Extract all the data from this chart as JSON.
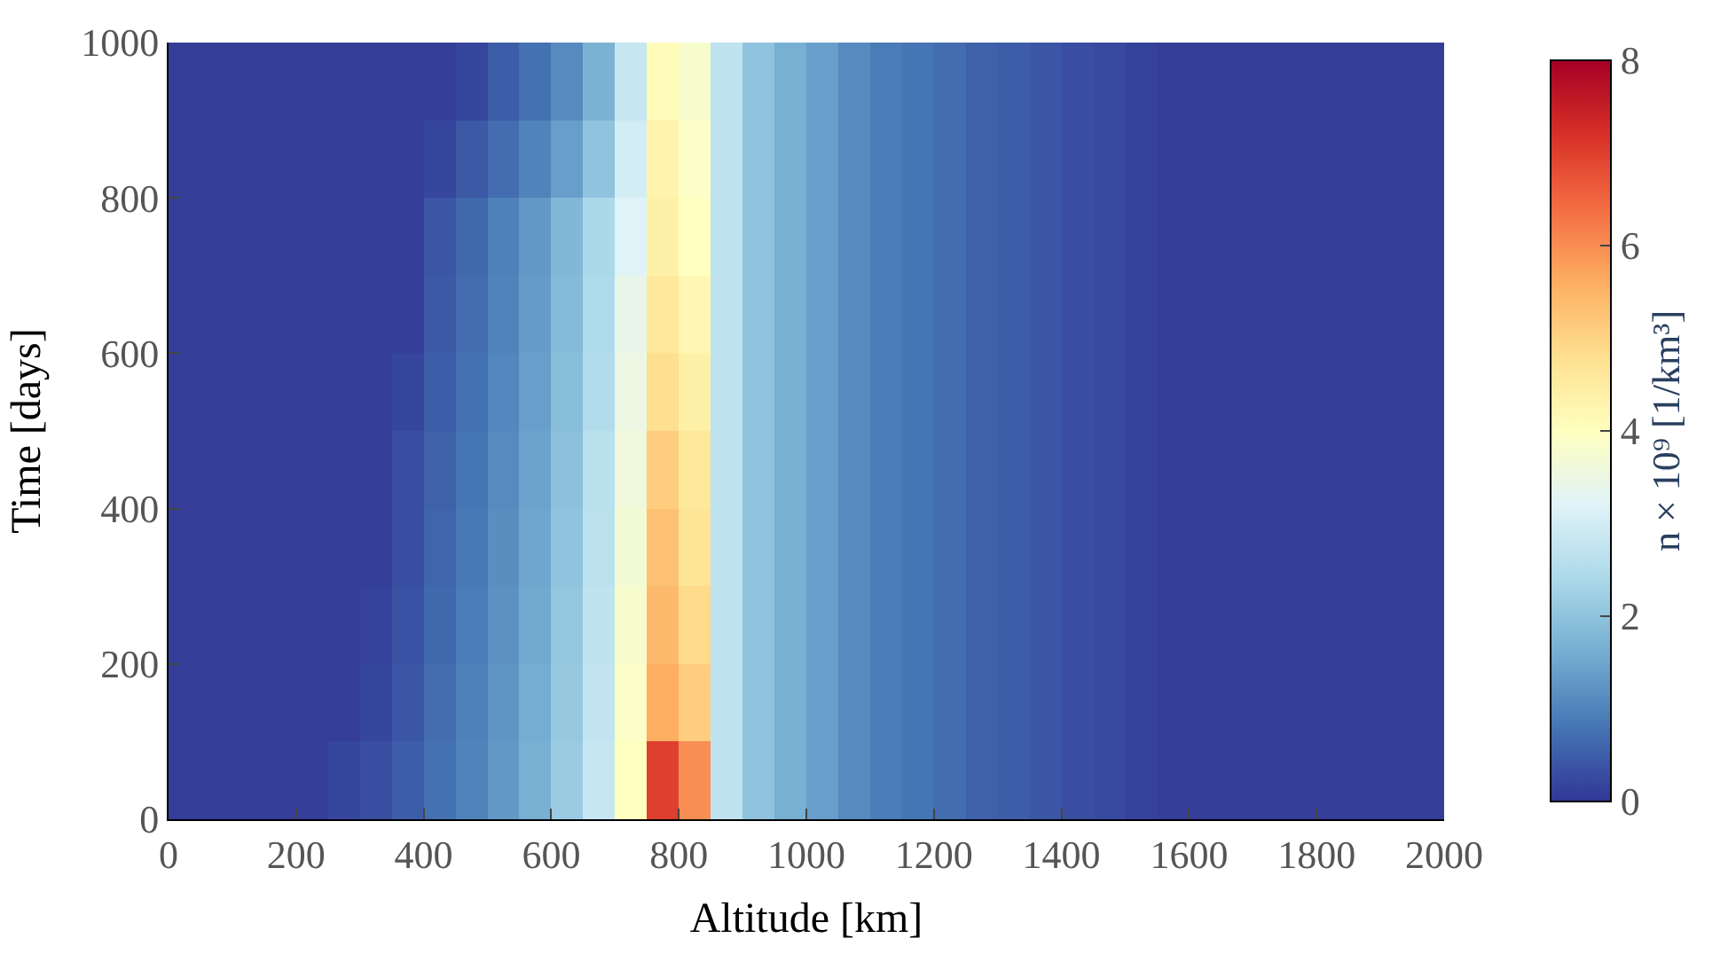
{
  "chart_data": {
    "type": "heatmap",
    "xlabel": "Altitude [km]",
    "ylabel": "Time [days]",
    "clabel": "n × 10⁹ [1/km³]",
    "x": [
      25,
      75,
      125,
      175,
      225,
      275,
      325,
      375,
      425,
      475,
      525,
      575,
      625,
      675,
      725,
      775,
      825,
      875,
      925,
      975,
      1025,
      1075,
      1125,
      1175,
      1225,
      1275,
      1325,
      1375,
      1425,
      1475,
      1525,
      1575,
      1625,
      1675,
      1725,
      1775,
      1825,
      1875,
      1925,
      1975
    ],
    "y": [
      950,
      850,
      750,
      650,
      550,
      450,
      350,
      250,
      150,
      50
    ],
    "cells": [
      [
        0.1,
        0.1,
        0.1,
        0.1,
        0.1,
        0.1,
        0.1,
        0.1,
        0.1,
        0.2,
        0.5,
        0.75,
        1.1,
        1.7,
        2.8,
        4.1,
        3.8,
        2.7,
        2.0,
        1.65,
        1.4,
        1.1,
        0.9,
        0.8,
        0.7,
        0.55,
        0.5,
        0.4,
        0.3,
        0.25,
        0.15,
        0.1,
        0.1,
        0.1,
        0.1,
        0.1,
        0.1,
        0.1,
        0.1,
        0.1
      ],
      [
        0.1,
        0.1,
        0.1,
        0.1,
        0.1,
        0.1,
        0.1,
        0.1,
        0.2,
        0.45,
        0.7,
        1.0,
        1.4,
        2.0,
        3.0,
        4.3,
        3.9,
        2.7,
        2.0,
        1.65,
        1.4,
        1.1,
        0.9,
        0.8,
        0.7,
        0.55,
        0.5,
        0.4,
        0.3,
        0.25,
        0.15,
        0.1,
        0.1,
        0.1,
        0.1,
        0.1,
        0.1,
        0.1,
        0.1,
        0.1
      ],
      [
        0.1,
        0.1,
        0.1,
        0.1,
        0.1,
        0.1,
        0.1,
        0.1,
        0.4,
        0.65,
        0.95,
        1.3,
        1.8,
        2.4,
        3.2,
        4.4,
        4.0,
        2.7,
        2.0,
        1.65,
        1.4,
        1.1,
        0.9,
        0.8,
        0.7,
        0.55,
        0.5,
        0.4,
        0.3,
        0.25,
        0.15,
        0.1,
        0.1,
        0.1,
        0.1,
        0.1,
        0.1,
        0.1,
        0.1,
        0.1
      ],
      [
        0.1,
        0.1,
        0.1,
        0.1,
        0.1,
        0.1,
        0.1,
        0.1,
        0.45,
        0.7,
        1.0,
        1.35,
        1.85,
        2.45,
        3.4,
        4.6,
        4.2,
        2.7,
        2.0,
        1.65,
        1.4,
        1.1,
        0.9,
        0.8,
        0.7,
        0.55,
        0.5,
        0.4,
        0.3,
        0.25,
        0.15,
        0.1,
        0.1,
        0.1,
        0.1,
        0.1,
        0.1,
        0.1,
        0.1,
        0.1
      ],
      [
        0.1,
        0.1,
        0.1,
        0.1,
        0.1,
        0.1,
        0.1,
        0.2,
        0.5,
        0.75,
        1.05,
        1.4,
        1.9,
        2.5,
        3.5,
        4.8,
        4.4,
        2.7,
        2.0,
        1.65,
        1.4,
        1.1,
        0.9,
        0.8,
        0.7,
        0.55,
        0.5,
        0.4,
        0.3,
        0.25,
        0.15,
        0.1,
        0.1,
        0.1,
        0.1,
        0.1,
        0.1,
        0.1,
        0.1,
        0.1
      ],
      [
        0.1,
        0.1,
        0.1,
        0.1,
        0.1,
        0.1,
        0.1,
        0.3,
        0.55,
        0.8,
        1.1,
        1.45,
        1.95,
        2.6,
        3.6,
        5.1,
        4.6,
        2.7,
        2.0,
        1.65,
        1.4,
        1.1,
        0.9,
        0.8,
        0.7,
        0.55,
        0.5,
        0.4,
        0.3,
        0.25,
        0.15,
        0.1,
        0.1,
        0.1,
        0.1,
        0.1,
        0.1,
        0.1,
        0.1,
        0.1
      ],
      [
        0.1,
        0.1,
        0.1,
        0.1,
        0.1,
        0.1,
        0.1,
        0.3,
        0.6,
        0.85,
        1.15,
        1.5,
        2.0,
        2.65,
        3.7,
        5.3,
        4.7,
        2.7,
        2.0,
        1.65,
        1.4,
        1.1,
        0.9,
        0.8,
        0.7,
        0.55,
        0.5,
        0.4,
        0.3,
        0.25,
        0.15,
        0.1,
        0.1,
        0.1,
        0.1,
        0.1,
        0.1,
        0.1,
        0.1,
        0.1
      ],
      [
        0.1,
        0.1,
        0.1,
        0.1,
        0.1,
        0.1,
        0.15,
        0.35,
        0.65,
        0.9,
        1.2,
        1.55,
        2.05,
        2.7,
        3.8,
        5.4,
        4.9,
        2.7,
        2.0,
        1.65,
        1.4,
        1.1,
        0.9,
        0.8,
        0.7,
        0.55,
        0.5,
        0.4,
        0.3,
        0.25,
        0.15,
        0.1,
        0.1,
        0.1,
        0.1,
        0.1,
        0.1,
        0.1,
        0.1,
        0.1
      ],
      [
        0.1,
        0.1,
        0.1,
        0.1,
        0.1,
        0.1,
        0.2,
        0.4,
        0.7,
        0.95,
        1.25,
        1.6,
        2.1,
        2.75,
        3.9,
        5.6,
        5.1,
        2.7,
        2.0,
        1.65,
        1.4,
        1.1,
        0.9,
        0.8,
        0.7,
        0.55,
        0.5,
        0.4,
        0.3,
        0.25,
        0.15,
        0.1,
        0.1,
        0.1,
        0.1,
        0.1,
        0.1,
        0.1,
        0.1,
        0.1
      ],
      [
        0.1,
        0.1,
        0.1,
        0.1,
        0.1,
        0.2,
        0.3,
        0.5,
        0.75,
        1.0,
        1.3,
        1.65,
        2.15,
        2.8,
        4.0,
        7.0,
        6.0,
        2.7,
        2.0,
        1.65,
        1.4,
        1.1,
        0.9,
        0.8,
        0.7,
        0.55,
        0.5,
        0.4,
        0.3,
        0.25,
        0.15,
        0.1,
        0.1,
        0.1,
        0.1,
        0.1,
        0.1,
        0.1,
        0.1,
        0.1
      ]
    ],
    "colors": [
      "#313695",
      "#4575b4",
      "#74add1",
      "#abd9e9",
      "#e0f3f8",
      "#ffffbf",
      "#fee090",
      "#fdae61",
      "#f46d43",
      "#d73027",
      "#a50026"
    ],
    "xlim": [
      0,
      2000
    ],
    "xticks": [
      0,
      200,
      400,
      600,
      800,
      1000,
      1200,
      1400,
      1600,
      1800,
      2000
    ],
    "ylim": [
      0,
      1000
    ],
    "yticks": [
      0,
      200,
      400,
      600,
      800,
      1000
    ],
    "clim": [
      0,
      8
    ],
    "cticks": [
      0,
      2,
      4,
      6,
      8
    ]
  }
}
